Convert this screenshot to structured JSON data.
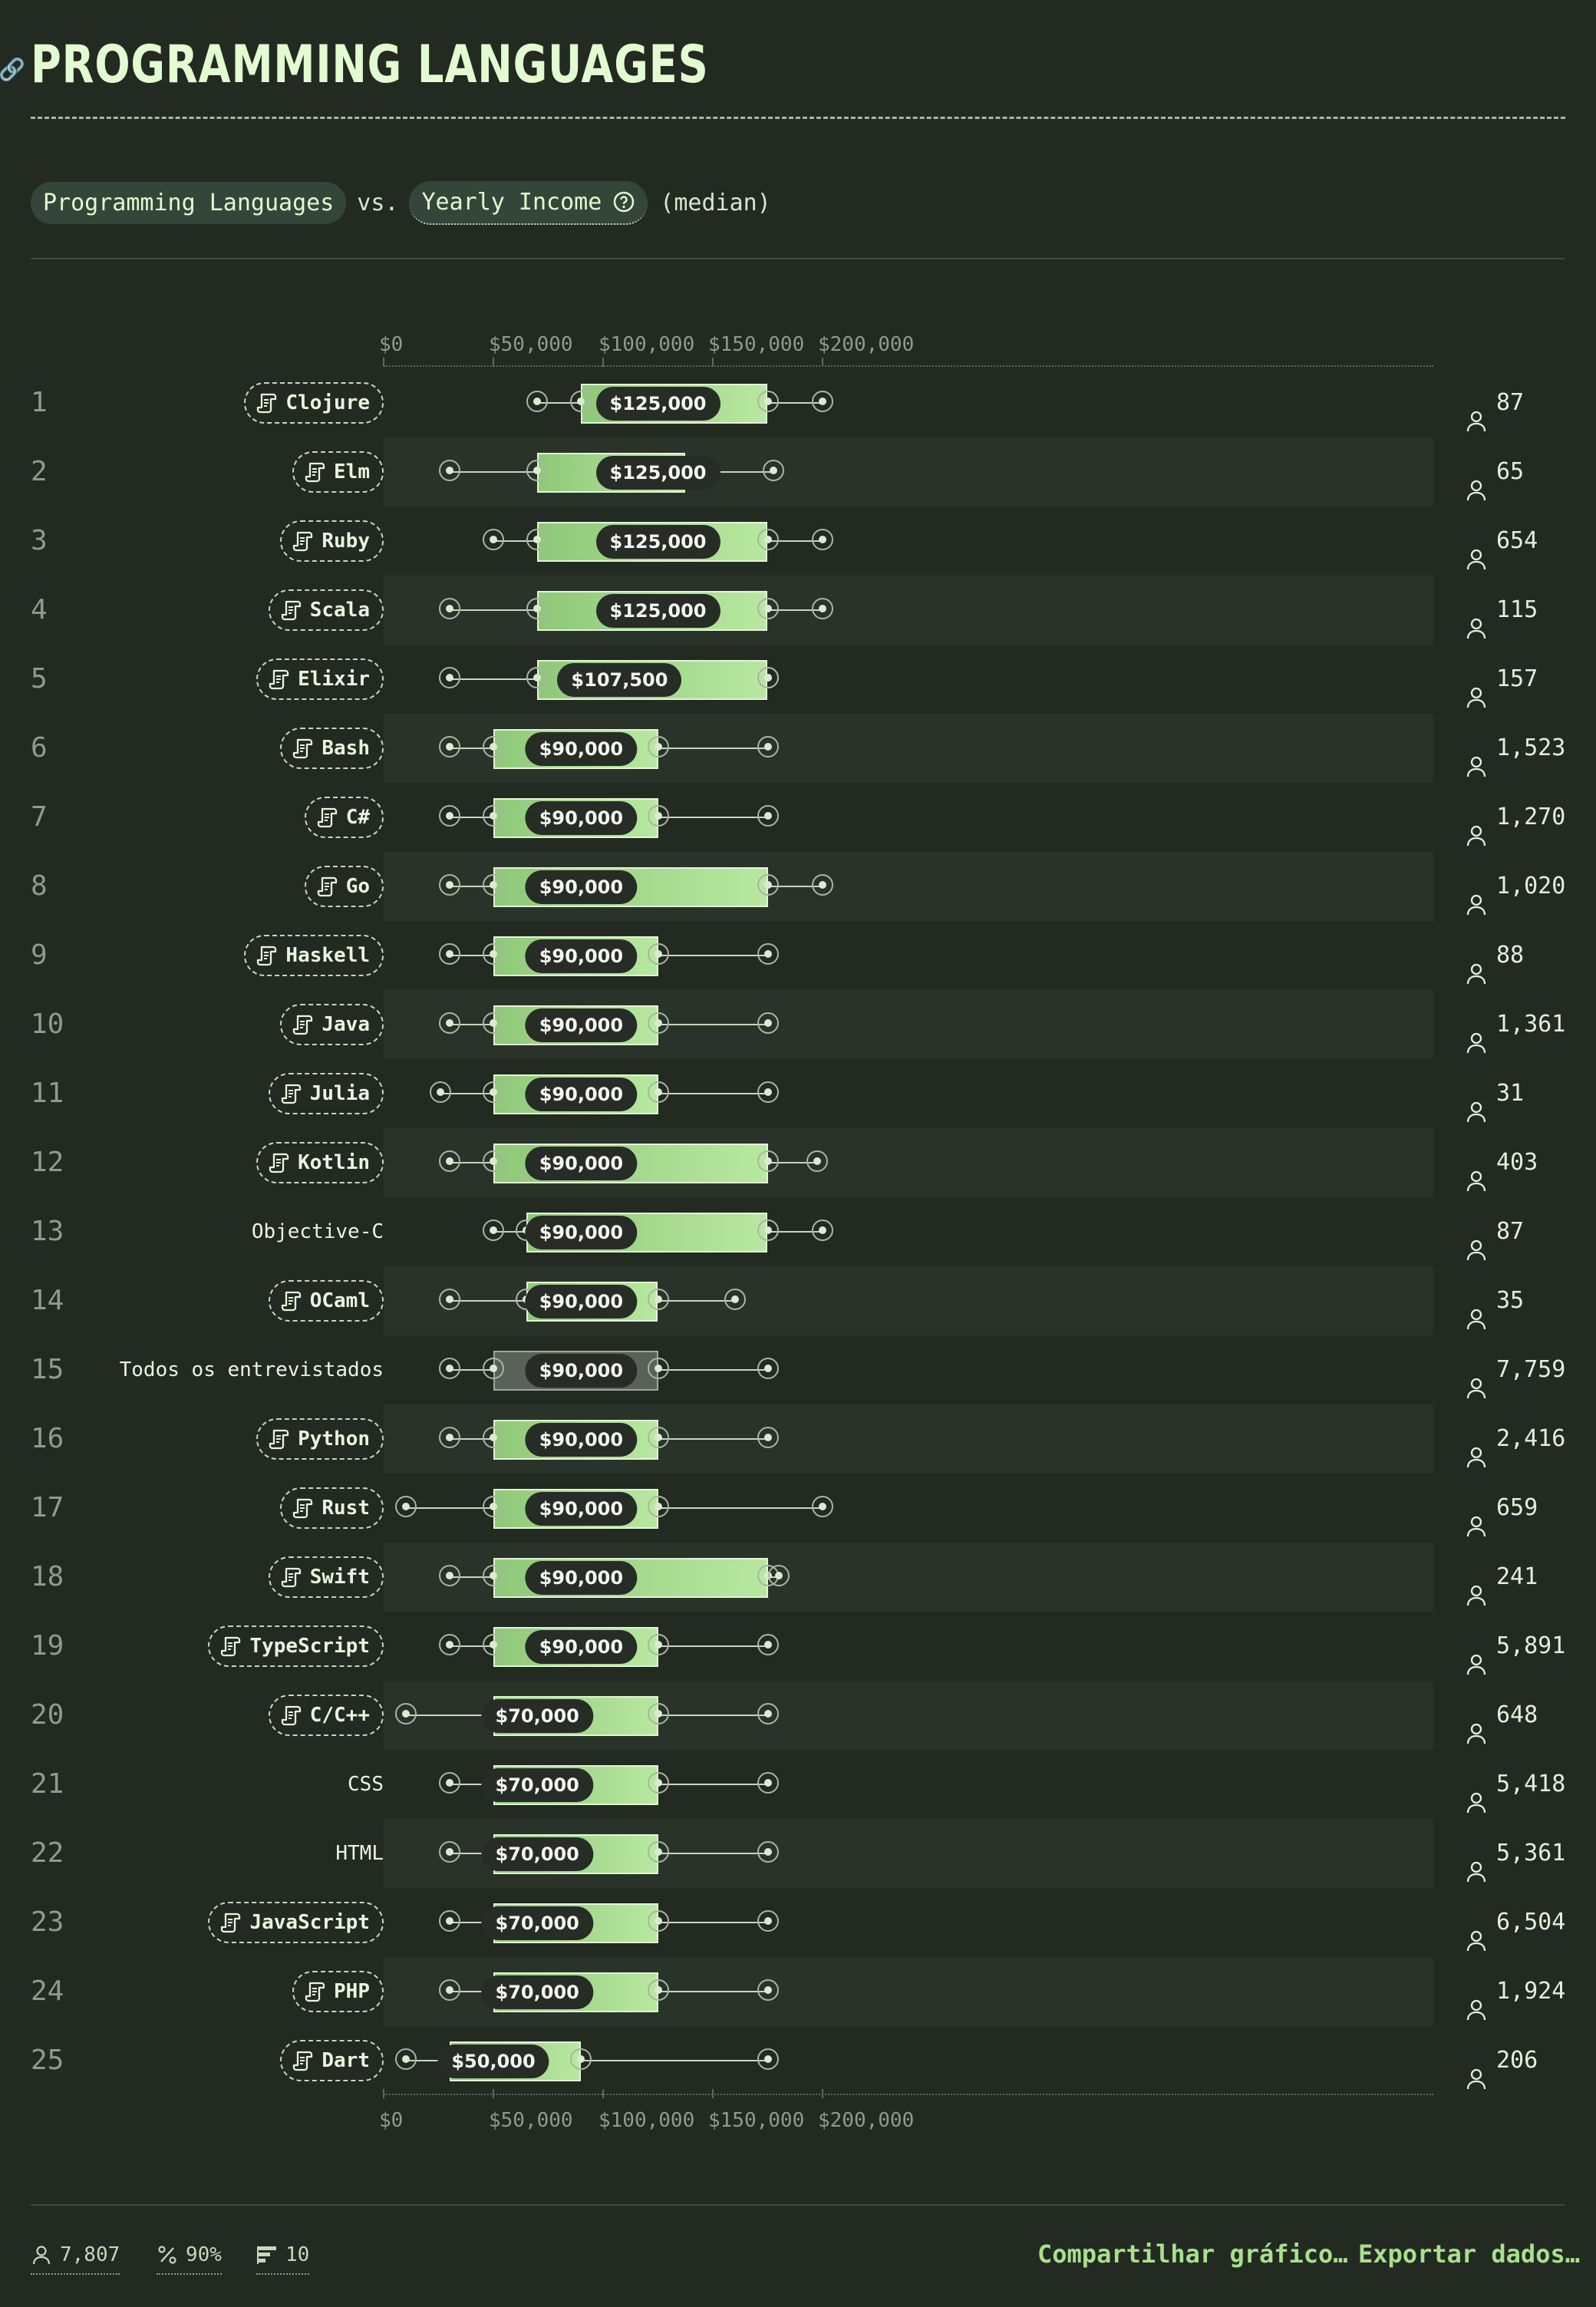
{
  "page": {
    "title": "PROGRAMMING LANGUAGES",
    "subtitle": {
      "dimension": "Programming Languages",
      "vs": "vs.",
      "measure": "Yearly Income",
      "stat": "(median)"
    }
  },
  "chart_data": {
    "type": "box",
    "x_range": [
      0,
      240000
    ],
    "ticks": [
      {
        "value": 0,
        "label": "$0"
      },
      {
        "value": 50000,
        "label": "$50,000"
      },
      {
        "value": 100000,
        "label": "$100,000"
      },
      {
        "value": 150000,
        "label": "$150,000"
      },
      {
        "value": 200000,
        "label": "$200,000"
      }
    ],
    "rows": [
      {
        "rank": "1",
        "name": "Clojure",
        "tag": true,
        "min": 70000,
        "q1": 90000,
        "median": 125000,
        "median_label": "$125,000",
        "q3": 175000,
        "max": 200000,
        "count": "87"
      },
      {
        "rank": "2",
        "name": "Elm",
        "tag": true,
        "min": 30000,
        "q1": 70000,
        "median": 125000,
        "median_label": "$125,000",
        "q3": 137500,
        "max": 177500,
        "count": "65"
      },
      {
        "rank": "3",
        "name": "Ruby",
        "tag": true,
        "min": 50000,
        "q1": 70000,
        "median": 125000,
        "median_label": "$125,000",
        "q3": 175000,
        "max": 200000,
        "count": "654"
      },
      {
        "rank": "4",
        "name": "Scala",
        "tag": true,
        "min": 30000,
        "q1": 70000,
        "median": 125000,
        "median_label": "$125,000",
        "q3": 175000,
        "max": 200000,
        "count": "115"
      },
      {
        "rank": "5",
        "name": "Elixir",
        "tag": true,
        "min": 30000,
        "q1": 70000,
        "median": 107500,
        "median_label": "$107,500",
        "q3": 175000,
        "max": 175000,
        "count": "157"
      },
      {
        "rank": "6",
        "name": "Bash",
        "tag": true,
        "min": 30000,
        "q1": 50000,
        "median": 90000,
        "median_label": "$90,000",
        "q3": 125000,
        "max": 175000,
        "count": "1,523"
      },
      {
        "rank": "7",
        "name": "C#",
        "tag": true,
        "min": 30000,
        "q1": 50000,
        "median": 90000,
        "median_label": "$90,000",
        "q3": 125000,
        "max": 175000,
        "count": "1,270"
      },
      {
        "rank": "8",
        "name": "Go",
        "tag": true,
        "min": 30000,
        "q1": 50000,
        "median": 90000,
        "median_label": "$90,000",
        "q3": 175000,
        "max": 200000,
        "count": "1,020"
      },
      {
        "rank": "9",
        "name": "Haskell",
        "tag": true,
        "min": 30000,
        "q1": 50000,
        "median": 90000,
        "median_label": "$90,000",
        "q3": 125000,
        "max": 175000,
        "count": "88"
      },
      {
        "rank": "10",
        "name": "Java",
        "tag": true,
        "min": 30000,
        "q1": 50000,
        "median": 90000,
        "median_label": "$90,000",
        "q3": 125000,
        "max": 175000,
        "count": "1,361"
      },
      {
        "rank": "11",
        "name": "Julia",
        "tag": true,
        "min": 26000,
        "q1": 50000,
        "median": 90000,
        "median_label": "$90,000",
        "q3": 125000,
        "max": 175000,
        "count": "31"
      },
      {
        "rank": "12",
        "name": "Kotlin",
        "tag": true,
        "min": 30000,
        "q1": 50000,
        "median": 90000,
        "median_label": "$90,000",
        "q3": 175000,
        "max": 197500,
        "count": "403"
      },
      {
        "rank": "13",
        "name": "Objective-C",
        "tag": false,
        "min": 50000,
        "q1": 65000,
        "median": 90000,
        "median_label": "$90,000",
        "q3": 175000,
        "max": 200000,
        "count": "87"
      },
      {
        "rank": "14",
        "name": "OCaml",
        "tag": true,
        "min": 30000,
        "q1": 65000,
        "median": 90000,
        "median_label": "$90,000",
        "q3": 125000,
        "max": 160000,
        "count": "35"
      },
      {
        "rank": "15",
        "name": "Todos os entrevistados",
        "tag": false,
        "gray": true,
        "min": 30000,
        "q1": 50000,
        "median": 90000,
        "median_label": "$90,000",
        "q3": 125000,
        "max": 175000,
        "count": "7,759"
      },
      {
        "rank": "16",
        "name": "Python",
        "tag": true,
        "min": 30000,
        "q1": 50000,
        "median": 90000,
        "median_label": "$90,000",
        "q3": 125000,
        "max": 175000,
        "count": "2,416"
      },
      {
        "rank": "17",
        "name": "Rust",
        "tag": true,
        "min": 10000,
        "q1": 50000,
        "median": 90000,
        "median_label": "$90,000",
        "q3": 125000,
        "max": 200000,
        "count": "659"
      },
      {
        "rank": "18",
        "name": "Swift",
        "tag": true,
        "min": 30000,
        "q1": 50000,
        "median": 90000,
        "median_label": "$90,000",
        "q3": 175000,
        "max": 180000,
        "count": "241"
      },
      {
        "rank": "19",
        "name": "TypeScript",
        "tag": true,
        "min": 30000,
        "q1": 50000,
        "median": 90000,
        "median_label": "$90,000",
        "q3": 125000,
        "max": 175000,
        "count": "5,891"
      },
      {
        "rank": "20",
        "name": "C/C++",
        "tag": true,
        "min": 10000,
        "q1": 50000,
        "median": 70000,
        "median_label": "$70,000",
        "q3": 125000,
        "max": 175000,
        "count": "648"
      },
      {
        "rank": "21",
        "name": "CSS",
        "tag": false,
        "min": 30000,
        "q1": 50000,
        "median": 70000,
        "median_label": "$70,000",
        "q3": 125000,
        "max": 175000,
        "count": "5,418"
      },
      {
        "rank": "22",
        "name": "HTML",
        "tag": false,
        "min": 30000,
        "q1": 50000,
        "median": 70000,
        "median_label": "$70,000",
        "q3": 125000,
        "max": 175000,
        "count": "5,361"
      },
      {
        "rank": "23",
        "name": "JavaScript",
        "tag": true,
        "min": 30000,
        "q1": 50000,
        "median": 70000,
        "median_label": "$70,000",
        "q3": 125000,
        "max": 175000,
        "count": "6,504"
      },
      {
        "rank": "24",
        "name": "PHP",
        "tag": true,
        "min": 30000,
        "q1": 50000,
        "median": 70000,
        "median_label": "$70,000",
        "q3": 125000,
        "max": 175000,
        "count": "1,924"
      },
      {
        "rank": "25",
        "name": "Dart",
        "tag": true,
        "min": 10000,
        "q1": 30000,
        "median": 50000,
        "median_label": "$50,000",
        "q3": 90000,
        "max": 175000,
        "count": "206"
      }
    ]
  },
  "footer": {
    "respondents": "7,807",
    "percent": "90%",
    "threshold": "10",
    "share_label": "Compartilhar gráfico…",
    "export_label": "Exportar dados…"
  },
  "colors": {
    "background": "#232a22",
    "accent": "#a8e08c",
    "box_start": "#8ec878",
    "box_end": "#b8e8a0"
  }
}
